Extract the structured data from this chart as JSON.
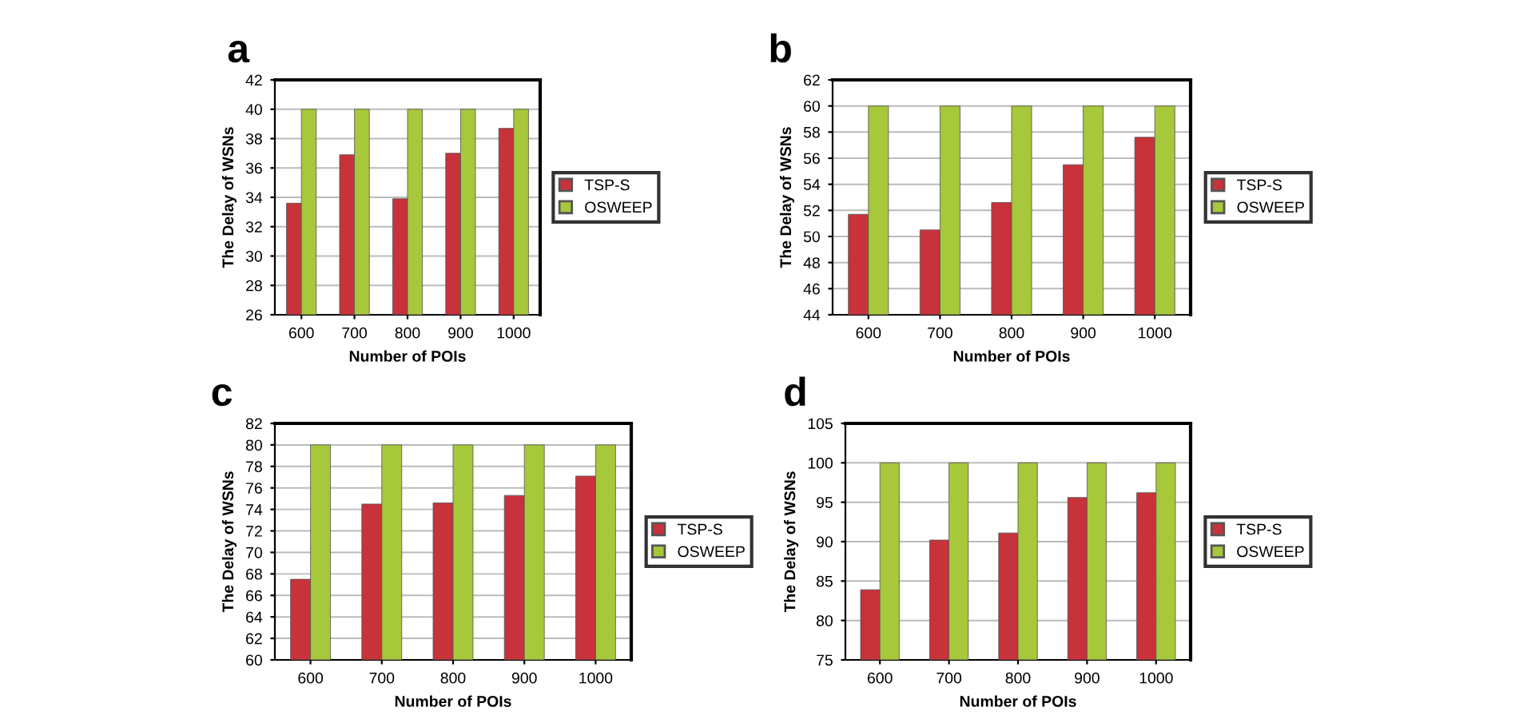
{
  "chart_data": [
    {
      "type": "bar",
      "title": "a",
      "xlabel": "Number of POIs",
      "ylabel": "The Delay of WSNs",
      "categories": [
        "600",
        "700",
        "800",
        "900",
        "1000"
      ],
      "series": [
        {
          "name": "TSP-S",
          "color": "#c8323a",
          "values": [
            33.6,
            36.9,
            33.9,
            37.0,
            38.7
          ]
        },
        {
          "name": "OSWEEP",
          "color": "#a6c83a",
          "values": [
            40,
            40,
            40,
            40,
            40
          ]
        }
      ],
      "ylim": [
        26,
        42
      ],
      "yticks": [
        26,
        28,
        30,
        32,
        34,
        36,
        38,
        40,
        42
      ],
      "grid": "y",
      "legend": "right"
    },
    {
      "type": "bar",
      "title": "b",
      "xlabel": "Number of POIs",
      "ylabel": "The Delay of WSNs",
      "categories": [
        "600",
        "700",
        "800",
        "900",
        "1000"
      ],
      "series": [
        {
          "name": "TSP-S",
          "color": "#c8323a",
          "values": [
            51.7,
            50.5,
            52.6,
            55.5,
            57.6
          ]
        },
        {
          "name": "OSWEEP",
          "color": "#a6c83a",
          "values": [
            60,
            60,
            60,
            60,
            60
          ]
        }
      ],
      "ylim": [
        44,
        62
      ],
      "yticks": [
        44,
        46,
        48,
        50,
        52,
        54,
        56,
        58,
        60,
        62
      ],
      "grid": "y",
      "legend": "right"
    },
    {
      "type": "bar",
      "title": "c",
      "xlabel": "Number of POIs",
      "ylabel": "The Delay of WSNs",
      "categories": [
        "600",
        "700",
        "800",
        "900",
        "1000"
      ],
      "series": [
        {
          "name": "TSP-S",
          "color": "#c8323a",
          "values": [
            67.5,
            74.5,
            74.6,
            75.3,
            77.1
          ]
        },
        {
          "name": "OSWEEP",
          "color": "#a6c83a",
          "values": [
            80,
            80,
            80,
            80,
            80
          ]
        }
      ],
      "ylim": [
        60,
        82
      ],
      "yticks": [
        60,
        62,
        64,
        66,
        68,
        70,
        72,
        74,
        76,
        78,
        80,
        82
      ],
      "grid": "y",
      "legend": "right"
    },
    {
      "type": "bar",
      "title": "d",
      "xlabel": "Number of POIs",
      "ylabel": "The Delay of WSNs",
      "categories": [
        "600",
        "700",
        "800",
        "900",
        "1000"
      ],
      "series": [
        {
          "name": "TSP-S",
          "color": "#c8323a",
          "values": [
            83.9,
            90.2,
            91.1,
            95.6,
            96.2
          ]
        },
        {
          "name": "OSWEEP",
          "color": "#a6c83a",
          "values": [
            100,
            100,
            100,
            100,
            100
          ]
        }
      ],
      "ylim": [
        75,
        105
      ],
      "yticks": [
        75,
        80,
        85,
        90,
        95,
        100,
        105
      ],
      "grid": "y",
      "legend": "right"
    }
  ]
}
